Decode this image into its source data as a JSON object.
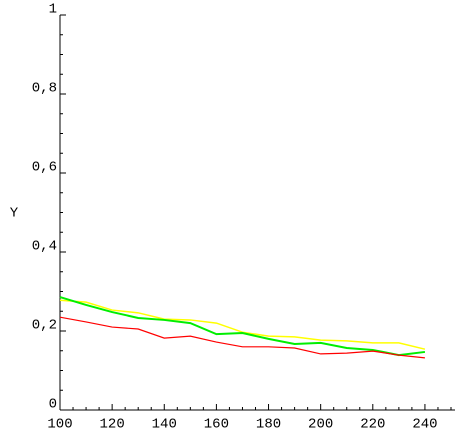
{
  "chart_data": {
    "type": "line",
    "y_label": "Y",
    "x": [
      100,
      110,
      120,
      130,
      140,
      150,
      160,
      170,
      180,
      190,
      200,
      210,
      220,
      230,
      240
    ],
    "series": [
      {
        "color": "#ffff00",
        "width": 1.5,
        "values": [
          0.278,
          0.273,
          0.253,
          0.246,
          0.23,
          0.228,
          0.22,
          0.197,
          0.187,
          0.185,
          0.177,
          0.175,
          0.17,
          0.17,
          0.154
        ]
      },
      {
        "color": "#00ee00",
        "width": 2,
        "values": [
          0.286,
          0.266,
          0.248,
          0.233,
          0.228,
          0.22,
          0.192,
          0.195,
          0.18,
          0.167,
          0.17,
          0.157,
          0.152,
          0.139,
          0.147
        ]
      },
      {
        "color": "#ff0000",
        "width": 1.2,
        "values": [
          0.235,
          0.223,
          0.21,
          0.205,
          0.182,
          0.187,
          0.172,
          0.16,
          0.16,
          0.157,
          0.142,
          0.144,
          0.149,
          0.139,
          0.132
        ]
      }
    ],
    "xlim": [
      100,
      250
    ],
    "ylim": [
      0,
      1
    ],
    "xticks": [
      100,
      120,
      140,
      160,
      180,
      200,
      220,
      240
    ],
    "yticks": [
      0,
      {
        "value": 0.2,
        "label": "0,2"
      },
      {
        "value": 0.4,
        "label": "0,4"
      },
      {
        "value": 0.6,
        "label": "0,6"
      },
      {
        "value": 0.8,
        "label": "0,8"
      },
      1
    ]
  }
}
